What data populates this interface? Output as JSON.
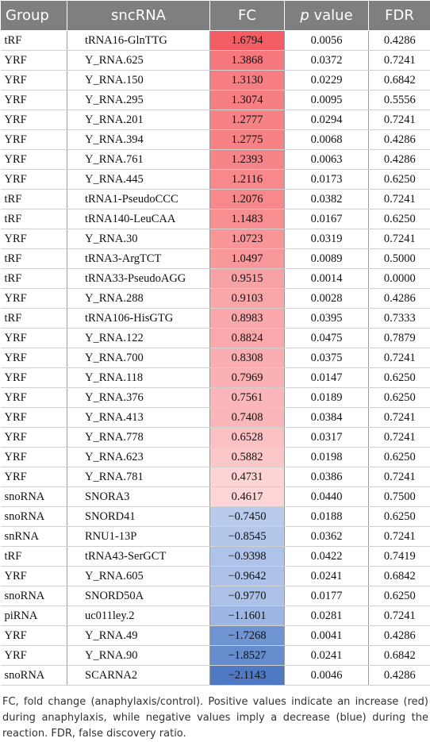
{
  "table": {
    "headers": {
      "group": "Group",
      "sncrna": "sncRNA",
      "fc": "FC",
      "p_value_italic": "p",
      "p_value_rest": " value",
      "fdr": "FDR"
    },
    "rows": [
      {
        "group": "tRF",
        "sncrna": "tRNA16-GlnTTG",
        "fc": "1.6794",
        "fc_color": "#f45d63",
        "p": "0.0056",
        "fdr": "0.4286"
      },
      {
        "group": "YRF",
        "sncrna": "Y_RNA.625",
        "fc": "1.3868",
        "fc_color": "#f5787d",
        "p": "0.0372",
        "fdr": "0.7241"
      },
      {
        "group": "YRF",
        "sncrna": "Y_RNA.150",
        "fc": "1.3130",
        "fc_color": "#f67e83",
        "p": "0.0229",
        "fdr": "0.6842"
      },
      {
        "group": "YRF",
        "sncrna": "Y_RNA.295",
        "fc": "1.3074",
        "fc_color": "#f67f84",
        "p": "0.0095",
        "fdr": "0.5556"
      },
      {
        "group": "YRF",
        "sncrna": "Y_RNA.201",
        "fc": "1.2777",
        "fc_color": "#f68286",
        "p": "0.0294",
        "fdr": "0.7241"
      },
      {
        "group": "YRF",
        "sncrna": "Y_RNA.394",
        "fc": "1.2775",
        "fc_color": "#f68286",
        "p": "0.0068",
        "fdr": "0.4286"
      },
      {
        "group": "YRF",
        "sncrna": "Y_RNA.761",
        "fc": "1.2393",
        "fc_color": "#f6858a",
        "p": "0.0063",
        "fdr": "0.4286"
      },
      {
        "group": "YRF",
        "sncrna": "Y_RNA.445",
        "fc": "1.2116",
        "fc_color": "#f7888c",
        "p": "0.0173",
        "fdr": "0.6250"
      },
      {
        "group": "tRF",
        "sncrna": "tRNA1-PseudoCCC",
        "fc": "1.2076",
        "fc_color": "#f7888c",
        "p": "0.0382",
        "fdr": "0.7241"
      },
      {
        "group": "tRF",
        "sncrna": "tRNA140-LeuCAA",
        "fc": "1.1483",
        "fc_color": "#f78e92",
        "p": "0.0167",
        "fdr": "0.6250"
      },
      {
        "group": "YRF",
        "sncrna": "Y_RNA.30",
        "fc": "1.0723",
        "fc_color": "#f89599",
        "p": "0.0319",
        "fdr": "0.7241"
      },
      {
        "group": "tRF",
        "sncrna": "tRNA3-ArgTCT",
        "fc": "1.0497",
        "fc_color": "#f8989b",
        "p": "0.0089",
        "fdr": "0.5000"
      },
      {
        "group": "tRF",
        "sncrna": "tRNA33-PseudoAGG",
        "fc": "0.9515",
        "fc_color": "#f9a2a5",
        "p": "0.0014",
        "fdr": "0.0000"
      },
      {
        "group": "YRF",
        "sncrna": "Y_RNA.288",
        "fc": "0.9103",
        "fc_color": "#f9a6a9",
        "p": "0.0028",
        "fdr": "0.4286"
      },
      {
        "group": "tRF",
        "sncrna": "tRNA106-HisGTG",
        "fc": "0.8983",
        "fc_color": "#f9a7aa",
        "p": "0.0395",
        "fdr": "0.7333"
      },
      {
        "group": "YRF",
        "sncrna": "Y_RNA.122",
        "fc": "0.8824",
        "fc_color": "#f9a9ac",
        "p": "0.0475",
        "fdr": "0.7879"
      },
      {
        "group": "YRF",
        "sncrna": "Y_RNA.700",
        "fc": "0.8308",
        "fc_color": "#faaeb1",
        "p": "0.0375",
        "fdr": "0.7241"
      },
      {
        "group": "YRF",
        "sncrna": "Y_RNA.118",
        "fc": "0.7969",
        "fc_color": "#fab1b4",
        "p": "0.0147",
        "fdr": "0.6250"
      },
      {
        "group": "YRF",
        "sncrna": "Y_RNA.376",
        "fc": "0.7561",
        "fc_color": "#fab6b8",
        "p": "0.0189",
        "fdr": "0.6250"
      },
      {
        "group": "YRF",
        "sncrna": "Y_RNA.413",
        "fc": "0.7408",
        "fc_color": "#fab7b9",
        "p": "0.0384",
        "fdr": "0.7241"
      },
      {
        "group": "YRF",
        "sncrna": "Y_RNA.778",
        "fc": "0.6528",
        "fc_color": "#fbc0c2",
        "p": "0.0317",
        "fdr": "0.7241"
      },
      {
        "group": "YRF",
        "sncrna": "Y_RNA.623",
        "fc": "0.5882",
        "fc_color": "#fcc7c8",
        "p": "0.0198",
        "fdr": "0.6250"
      },
      {
        "group": "YRF",
        "sncrna": "Y_RNA.781",
        "fc": "0.4731",
        "fc_color": "#fdd3d4",
        "p": "0.0386",
        "fdr": "0.7241"
      },
      {
        "group": "snoRNA",
        "sncrna": "SNORA3",
        "fc": "0.4617",
        "fc_color": "#fdd5d6",
        "p": "0.0440",
        "fdr": "0.7500"
      },
      {
        "group": "snoRNA",
        "sncrna": "SNORD41",
        "fc": "−0.7450",
        "fc_color": "#b9cbec",
        "p": "0.0188",
        "fdr": "0.6250"
      },
      {
        "group": "snRNA",
        "sncrna": "RNU1-13P",
        "fc": "−0.8545",
        "fc_color": "#b3c7ea",
        "p": "0.0362",
        "fdr": "0.7241"
      },
      {
        "group": "tRF",
        "sncrna": "tRNA43-SerGCT",
        "fc": "−0.9398",
        "fc_color": "#aec3e9",
        "p": "0.0422",
        "fdr": "0.7419"
      },
      {
        "group": "YRF",
        "sncrna": "Y_RNA.605",
        "fc": "−0.9642",
        "fc_color": "#acc2e8",
        "p": "0.0241",
        "fdr": "0.6842"
      },
      {
        "group": "snoRNA",
        "sncrna": "SNORD50A",
        "fc": "−0.9770",
        "fc_color": "#abc1e8",
        "p": "0.0177",
        "fdr": "0.6250"
      },
      {
        "group": "piRNA",
        "sncrna": "uc011ley.2",
        "fc": "−1.1601",
        "fc_color": "#9db6e3",
        "p": "0.0281",
        "fdr": "0.7241"
      },
      {
        "group": "YRF",
        "sncrna": "Y_RNA.49",
        "fc": "−1.7268",
        "fc_color": "#6f94d2",
        "p": "0.0041",
        "fdr": "0.4286"
      },
      {
        "group": "YRF",
        "sncrna": "Y_RNA.90",
        "fc": "−1.8527",
        "fc_color": "#658ccd",
        "p": "0.0241",
        "fdr": "0.6842"
      },
      {
        "group": "snoRNA",
        "sncrna": "SCARNA2",
        "fc": "−2.1143",
        "fc_color": "#5079c4",
        "p": "0.0046",
        "fdr": "0.4286"
      }
    ]
  },
  "footnote": "FC, fold change (anaphylaxis/control). Positive values indicate an increase (red) during anaphylaxis, while negative values imply a decrease (blue) during the reaction. FDR, false discovery ratio."
}
